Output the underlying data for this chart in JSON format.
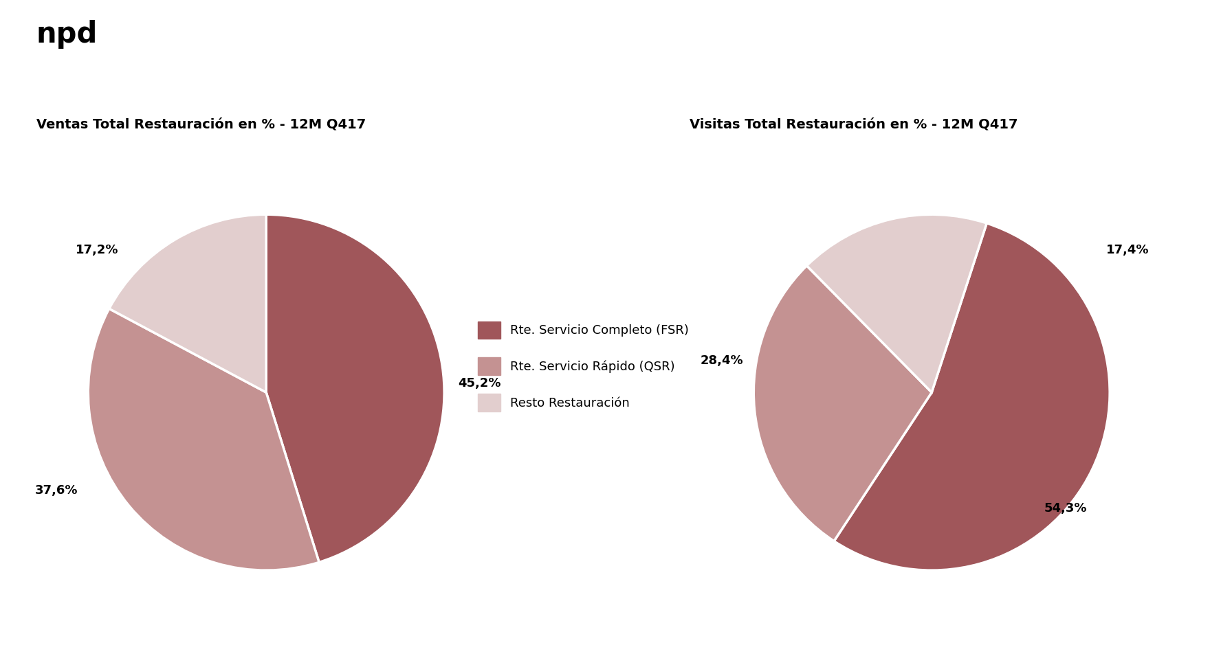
{
  "title_left": "Ventas Total Restauración en % - 12M Q417",
  "title_right": "Visitas Total Restauración en % - 12M Q417",
  "legend_labels": [
    "Rte. Servicio Completo (FSR)",
    "Rte. Servicio Rápido (QSR)",
    "Resto Restauración"
  ],
  "colors_fsr": "#A0565A",
  "colors_qsr": "#C49292",
  "colors_resto": "#E2CECE",
  "pie1_values": [
    45.2,
    37.6,
    17.2
  ],
  "pie1_labels": [
    "45,2%",
    "37,6%",
    "17,2%"
  ],
  "pie1_startangle": 90,
  "pie2_values": [
    54.3,
    28.4,
    17.4
  ],
  "pie2_labels": [
    "54,3%",
    "28,4%",
    "17,4%"
  ],
  "pie2_startangle": 72,
  "background_color": "#FFFFFF",
  "title_fontsize": 14,
  "label_fontsize": 13,
  "legend_fontsize": 13
}
